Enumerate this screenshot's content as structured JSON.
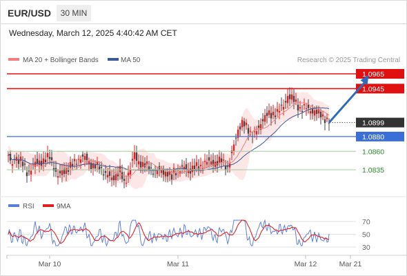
{
  "header": {
    "symbol": "EUR/USD",
    "timeframe": "30 MIN"
  },
  "datetime": "Wednesday, March 12, 2025 4:40:42 AM CET",
  "legend": {
    "ma20": "MA 20 + Bollinger Bands",
    "ma50": "MA 50"
  },
  "credit": "Research © 2025 Trading Central",
  "colors": {
    "ma20": "#f08080",
    "ma50": "#3a5a98",
    "resistance": "#e01010",
    "support_blue": "#3b6fd8",
    "support_green": "#2a8a2a",
    "bull": "#e02020",
    "bear": "#444444",
    "band_fill": "#fde3e3",
    "rsi": "#5b7fd8",
    "ma9": "#e02020",
    "arrow": "#2f6bb8"
  },
  "chart_data": [
    {
      "type": "candlestick",
      "title": "EUR/USD 30 MIN",
      "levels": [
        {
          "value": 1.0965,
          "label": "1.0965",
          "kind": "resistance"
        },
        {
          "value": 1.0945,
          "label": "1.0945",
          "kind": "resistance"
        },
        {
          "value": 1.0899,
          "label": "1.0899",
          "kind": "current"
        },
        {
          "value": 1.088,
          "label": "1.0880",
          "kind": "pivot"
        },
        {
          "value": 1.086,
          "label": "1.0860",
          "kind": "support"
        },
        {
          "value": 1.0835,
          "label": "1.0835",
          "kind": "support"
        }
      ],
      "x_ticks": [
        "Mar 10",
        "Mar 11",
        "Mar 12",
        "Mar 21"
      ],
      "close_path": [
        [
          0,
          1.0855
        ],
        [
          4,
          1.0838
        ],
        [
          6,
          1.0852
        ],
        [
          12,
          1.0848
        ],
        [
          18,
          1.083
        ],
        [
          25,
          1.0842
        ],
        [
          30,
          1.0845
        ],
        [
          40,
          1.0852
        ],
        [
          48,
          1.0826
        ],
        [
          58,
          1.0838
        ],
        [
          65,
          1.0845
        ],
        [
          70,
          1.0852
        ],
        [
          75,
          1.085
        ],
        [
          80,
          1.0842
        ],
        [
          88,
          1.0838
        ],
        [
          94,
          1.083
        ],
        [
          100,
          1.0822
        ],
        [
          108,
          1.0834
        ],
        [
          112,
          1.0815
        ],
        [
          118,
          1.0838
        ],
        [
          122,
          1.0856
        ],
        [
          124,
          1.0848
        ],
        [
          130,
          1.0842
        ],
        [
          136,
          1.0838
        ],
        [
          142,
          1.0832
        ],
        [
          148,
          1.0834
        ],
        [
          154,
          1.083
        ],
        [
          158,
          1.0824
        ],
        [
          160,
          1.0833
        ],
        [
          164,
          1.0834
        ],
        [
          170,
          1.0837
        ],
        [
          176,
          1.0835
        ],
        [
          180,
          1.0838
        ],
        [
          186,
          1.084
        ],
        [
          190,
          1.0844
        ],
        [
          196,
          1.0846
        ],
        [
          202,
          1.0844
        ],
        [
          206,
          1.0848
        ],
        [
          210,
          1.0842
        ],
        [
          212,
          1.0838
        ],
        [
          214,
          1.0846
        ],
        [
          218,
          1.0868
        ],
        [
          222,
          1.089
        ],
        [
          226,
          1.0898
        ],
        [
          230,
          1.0893
        ],
        [
          234,
          1.0886
        ],
        [
          238,
          1.0883
        ],
        [
          242,
          1.089
        ],
        [
          246,
          1.0905
        ],
        [
          250,
          1.091
        ],
        [
          254,
          1.0908
        ],
        [
          258,
          1.0913
        ],
        [
          262,
          1.0916
        ],
        [
          266,
          1.092
        ],
        [
          270,
          1.0936
        ],
        [
          274,
          1.0932
        ],
        [
          278,
          1.0925
        ],
        [
          282,
          1.0918
        ],
        [
          286,
          1.0919
        ],
        [
          290,
          1.0917
        ],
        [
          294,
          1.0915
        ],
        [
          298,
          1.0912
        ],
        [
          302,
          1.091
        ],
        [
          306,
          1.0905
        ],
        [
          310,
          1.0899
        ]
      ],
      "forecast": {
        "from": [
          310,
          1.0899
        ],
        "to": [
          335,
          1.096
        ]
      }
    },
    {
      "type": "line",
      "title": "RSI",
      "series": [
        {
          "name": "RSI"
        },
        {
          "name": "9MA"
        }
      ],
      "y_ticks": [
        70,
        50,
        30
      ],
      "ylim": [
        25,
        80
      ]
    }
  ]
}
